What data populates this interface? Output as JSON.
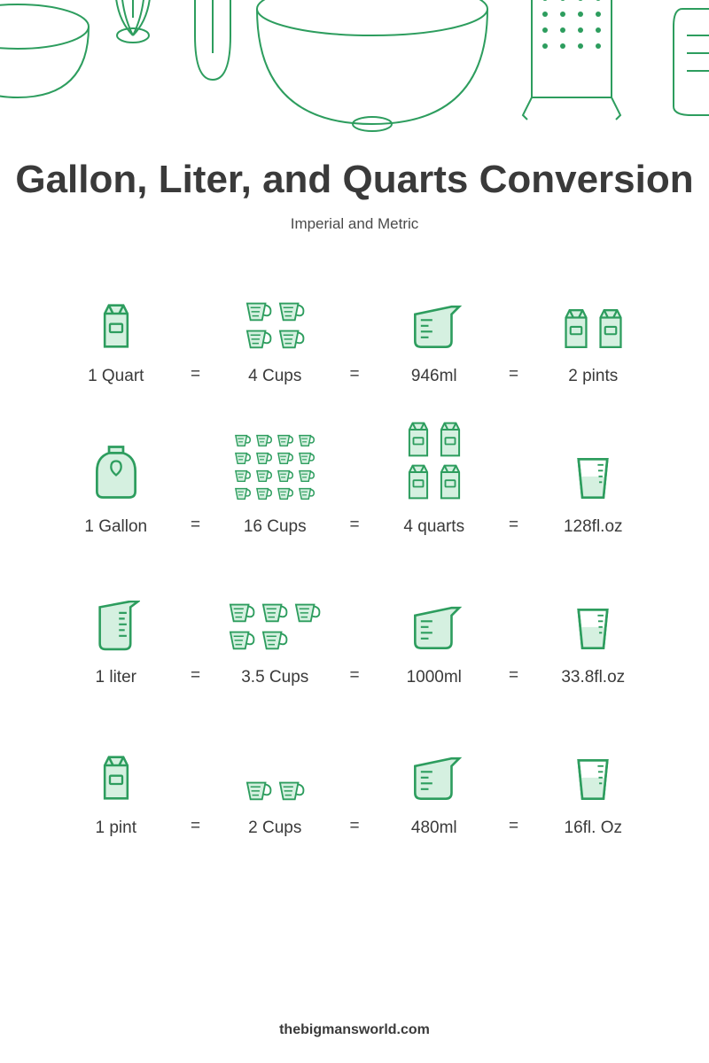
{
  "type": "infographic",
  "title": "Gallon, Liter, and Quarts Conversion",
  "subtitle": "Imperial and Metric",
  "footer": "thebigmansworld.com",
  "colors": {
    "icon_stroke": "#2d9d5e",
    "icon_fill": "#d5f0e0",
    "text_primary": "#3a3a3a",
    "text_secondary": "#4a4a4a",
    "background": "#ffffff"
  },
  "typography": {
    "title_fontsize": 44,
    "title_weight": 800,
    "subtitle_fontsize": 17,
    "label_fontsize": 19,
    "footer_fontsize": 16,
    "footer_weight": 700
  },
  "equals": "=",
  "rows": [
    {
      "cells": [
        {
          "label": "1 Quart",
          "icon": "carton",
          "count": 1
        },
        {
          "label": "4 Cups",
          "icon": "cup-small",
          "count": 4,
          "arrange": "2x2"
        },
        {
          "label": "946ml",
          "icon": "measuring-cup",
          "count": 1
        },
        {
          "label": "2 pints",
          "icon": "carton",
          "count": 2,
          "arrange": "1x2"
        }
      ]
    },
    {
      "cells": [
        {
          "label": "1 Gallon",
          "icon": "jug",
          "count": 1
        },
        {
          "label": "16 Cups",
          "icon": "cup-tiny",
          "count": 16,
          "arrange": "4x4"
        },
        {
          "label": "4 quarts",
          "icon": "carton",
          "count": 4,
          "arrange": "2x2b"
        },
        {
          "label": "128fl.oz",
          "icon": "glass",
          "count": 1
        }
      ]
    },
    {
      "cells": [
        {
          "label": "1 liter",
          "icon": "pitcher",
          "count": 1
        },
        {
          "label": "3.5 Cups",
          "icon": "cup-small",
          "count": 5,
          "arrange": "35"
        },
        {
          "label": "1000ml",
          "icon": "measuring-cup",
          "count": 1
        },
        {
          "label": "33.8fl.oz",
          "icon": "glass",
          "count": 1
        }
      ]
    },
    {
      "cells": [
        {
          "label": "1 pint",
          "icon": "carton",
          "count": 1
        },
        {
          "label": "2 Cups",
          "icon": "cup-small",
          "count": 2,
          "arrange": "1x2"
        },
        {
          "label": "480ml",
          "icon": "measuring-cup",
          "count": 1
        },
        {
          "label": "16fl. Oz",
          "icon": "glass",
          "count": 1
        }
      ]
    }
  ]
}
